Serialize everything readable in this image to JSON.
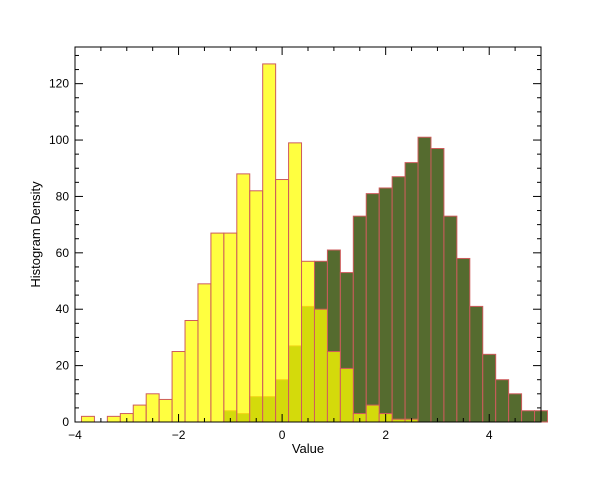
{
  "chart_data": {
    "type": "bar",
    "title": "",
    "xlabel": "Value",
    "ylabel": "Histogram Density",
    "xlim": [
      -4,
      5
    ],
    "ylim": [
      0,
      133
    ],
    "xticks": [
      -4,
      -2,
      0,
      2,
      4
    ],
    "yticks": [
      0,
      20,
      40,
      60,
      80,
      100,
      120
    ],
    "xtick_labels": [
      "−4",
      "−2",
      "0",
      "2",
      "4"
    ],
    "ytick_labels": [
      "0",
      "20",
      "40",
      "60",
      "80",
      "100",
      "120"
    ],
    "grid": false,
    "bin_width": 0.25,
    "series": [
      {
        "color": "#556B2F",
        "edge_color": "#CD5C5C",
        "bins": [
          [
            -1.0,
            4
          ],
          [
            -0.75,
            3
          ],
          [
            -0.5,
            9
          ],
          [
            -0.25,
            9
          ],
          [
            0.0,
            15
          ],
          [
            0.25,
            27
          ],
          [
            0.5,
            41
          ],
          [
            0.75,
            57
          ],
          [
            1.0,
            61
          ],
          [
            1.25,
            53
          ],
          [
            1.5,
            73
          ],
          [
            1.75,
            81
          ],
          [
            2.0,
            83
          ],
          [
            2.25,
            87
          ],
          [
            2.5,
            92
          ],
          [
            2.75,
            101
          ],
          [
            3.0,
            97
          ],
          [
            3.25,
            73
          ],
          [
            3.5,
            58
          ],
          [
            3.75,
            41
          ],
          [
            4.0,
            24
          ],
          [
            4.25,
            15
          ],
          [
            4.5,
            10
          ],
          [
            4.75,
            4
          ],
          [
            5.0,
            4
          ]
        ]
      },
      {
        "color": "#FFFF00",
        "edge_color": "#CD5C5C",
        "alpha": 0.75,
        "bins": [
          [
            -3.75,
            2
          ],
          [
            -3.5,
            0
          ],
          [
            -3.25,
            2
          ],
          [
            -3.0,
            3
          ],
          [
            -2.75,
            6
          ],
          [
            -2.5,
            10
          ],
          [
            -2.25,
            8
          ],
          [
            -2.0,
            25
          ],
          [
            -1.75,
            36
          ],
          [
            -1.5,
            49
          ],
          [
            -1.25,
            67
          ],
          [
            -1.0,
            67
          ],
          [
            -0.75,
            88
          ],
          [
            -0.5,
            82
          ],
          [
            -0.25,
            127
          ],
          [
            0.0,
            86
          ],
          [
            0.25,
            99
          ],
          [
            0.5,
            57
          ],
          [
            0.75,
            40
          ],
          [
            1.0,
            25
          ],
          [
            1.25,
            19
          ],
          [
            1.5,
            3
          ],
          [
            1.75,
            6
          ],
          [
            2.0,
            3
          ],
          [
            2.25,
            1
          ],
          [
            2.5,
            1
          ]
        ]
      }
    ]
  }
}
